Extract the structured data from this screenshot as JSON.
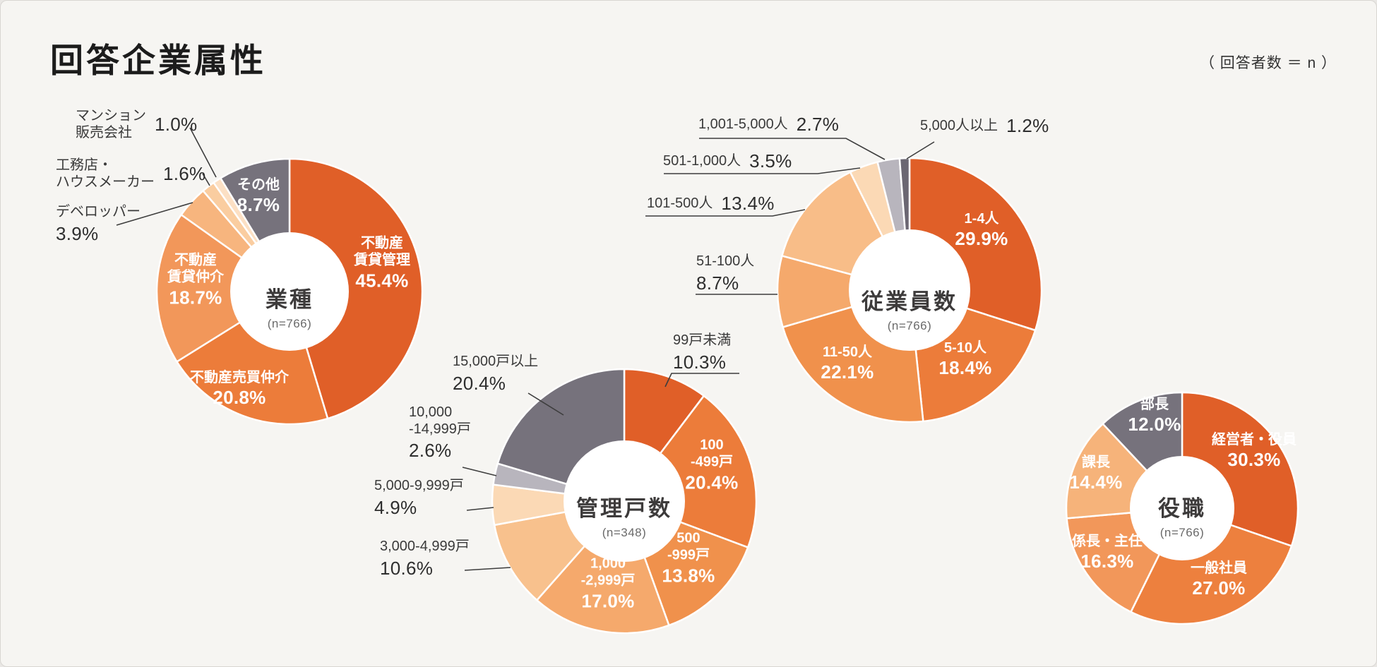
{
  "page": {
    "title": "回答企業属性",
    "note": "（ 回答者数 ＝ n ）"
  },
  "chart_data": [
    {
      "type": "pie",
      "style": "donut",
      "title": "業種",
      "n": "(n=766)",
      "slices": [
        {
          "label": "不動産\n賃貸管理",
          "pct": "45.4%",
          "value": 45.4,
          "color": "#E05F28"
        },
        {
          "label": "不動産売買仲介",
          "pct": "20.8%",
          "value": 20.8,
          "color": "#EC7C3A"
        },
        {
          "label": "不動産\n賃貸仲介",
          "pct": "18.7%",
          "value": 18.7,
          "color": "#F2975A"
        },
        {
          "label": "デベロッパー",
          "pct": "3.9%",
          "value": 3.9,
          "color": "#F7B57E"
        },
        {
          "label": "工務店・\nハウスメーカー",
          "pct": "1.6%",
          "value": 1.6,
          "color": "#FACDA0"
        },
        {
          "label": "マンション\n販売会社",
          "pct": "1.0%",
          "value": 1.0,
          "color": "#FCE0C4"
        },
        {
          "label": "その他",
          "pct": "8.7%",
          "value": 8.7,
          "color": "#76727C"
        }
      ]
    },
    {
      "type": "pie",
      "style": "donut",
      "title": "管理戸数",
      "n": "(n=348)",
      "slices": [
        {
          "label": "99戸未満",
          "pct": "10.3%",
          "value": 10.3,
          "color": "#E05F28"
        },
        {
          "label": "100\n-499戸",
          "pct": "20.4%",
          "value": 20.4,
          "color": "#EC7C3A"
        },
        {
          "label": "500\n-999戸",
          "pct": "13.8%",
          "value": 13.8,
          "color": "#F0914C"
        },
        {
          "label": "1,000\n-2,999戸",
          "pct": "17.0%",
          "value": 17.0,
          "color": "#F5A96C"
        },
        {
          "label": "3,000-4,999戸",
          "pct": "10.6%",
          "value": 10.6,
          "color": "#F8C18D"
        },
        {
          "label": "5,000-9,999戸",
          "pct": "4.9%",
          "value": 4.9,
          "color": "#FBD9B5"
        },
        {
          "label": "10,000\n-14,999戸",
          "pct": "2.6%",
          "value": 2.6,
          "color": "#B8B5BD"
        },
        {
          "label": "15,000戸以上",
          "pct": "20.4%",
          "value": 20.4,
          "color": "#76727C"
        }
      ]
    },
    {
      "type": "pie",
      "style": "donut",
      "title": "従業員数",
      "n": "(n=766)",
      "slices": [
        {
          "label": "1-4人",
          "pct": "29.9%",
          "value": 29.9,
          "color": "#E05F28"
        },
        {
          "label": "5-10人",
          "pct": "18.4%",
          "value": 18.4,
          "color": "#EC7C3A"
        },
        {
          "label": "11-50人",
          "pct": "22.1%",
          "value": 22.1,
          "color": "#F0914C"
        },
        {
          "label": "51-100人",
          "pct": "8.7%",
          "value": 8.7,
          "color": "#F5A96C"
        },
        {
          "label": "101-500人",
          "pct": "13.4%",
          "value": 13.4,
          "color": "#F8BD88"
        },
        {
          "label": "501-1,000人",
          "pct": "3.5%",
          "value": 3.5,
          "color": "#FBD9B5"
        },
        {
          "label": "1,001-5,000人",
          "pct": "2.7%",
          "value": 2.7,
          "color": "#B8B5BD"
        },
        {
          "label": "5,000人以上",
          "pct": "1.2%",
          "value": 1.2,
          "color": "#6B6772"
        }
      ]
    },
    {
      "type": "pie",
      "style": "donut",
      "title": "役職",
      "n": "(n=766)",
      "slices": [
        {
          "label": "経営者・役員",
          "pct": "30.3%",
          "value": 30.3,
          "color": "#E05F28"
        },
        {
          "label": "一般社員",
          "pct": "27.0%",
          "value": 27.0,
          "color": "#ED803E"
        },
        {
          "label": "係長・主任",
          "pct": "16.3%",
          "value": 16.3,
          "color": "#F2975A"
        },
        {
          "label": "課長",
          "pct": "14.4%",
          "value": 14.4,
          "color": "#F6B37A"
        },
        {
          "label": "部長",
          "pct": "12.0%",
          "value": 12.0,
          "color": "#76727C"
        }
      ]
    }
  ]
}
